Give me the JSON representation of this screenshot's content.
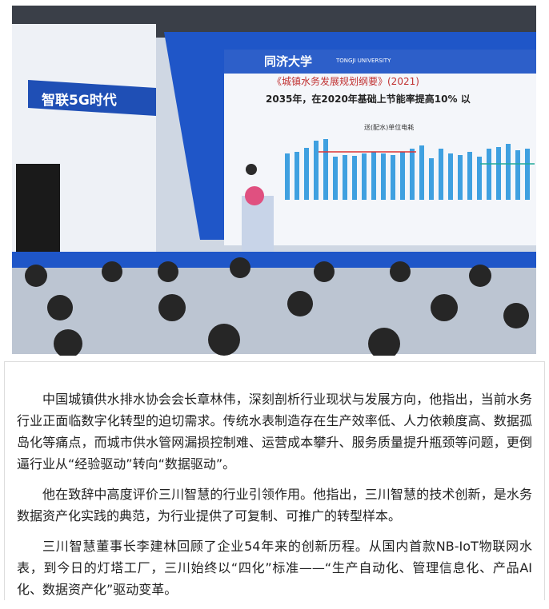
{
  "photo": {
    "banner": "智联5G时代",
    "screen_logo": "同济大学",
    "screen_logo_en": "TONGJI UNIVERSITY",
    "screen_title": "《城镇水务发展规划纲要》(2021)",
    "screen_subtitle": "2035年，在2020年基础上节能率提高10% 以",
    "screen_chart_title": "送(配水)单位电耗"
  },
  "paragraphs": [
    "中国城镇供水排水协会会长章林伟，深刻剖析行业现状与发展方向，他指出，当前水务行业正面临数字化转型的迫切需求。传统水表制造存在生产效率低、人力依赖度高、数据孤岛化等痛点，而城市供水管网漏损控制难、运营成本攀升、服务质量提升瓶颈等问题，更倒逼行业从“经验驱动”转向“数据驱动”。",
    "他在致辞中高度评价三川智慧的行业引领作用。他指出，三川智慧的技术创新，是水务数据资产化实践的典范，为行业提供了可复制、可推广的转型样本。",
    "三川智慧董事长李建林回顾了企业54年来的创新历程。从国内首款NB-IoT物联网水表，到今日的灯塔工厂，三川始终以“四化”标准——“生产自动化、管理信息化、产品AI化、数据资产化”驱动变革。"
  ]
}
